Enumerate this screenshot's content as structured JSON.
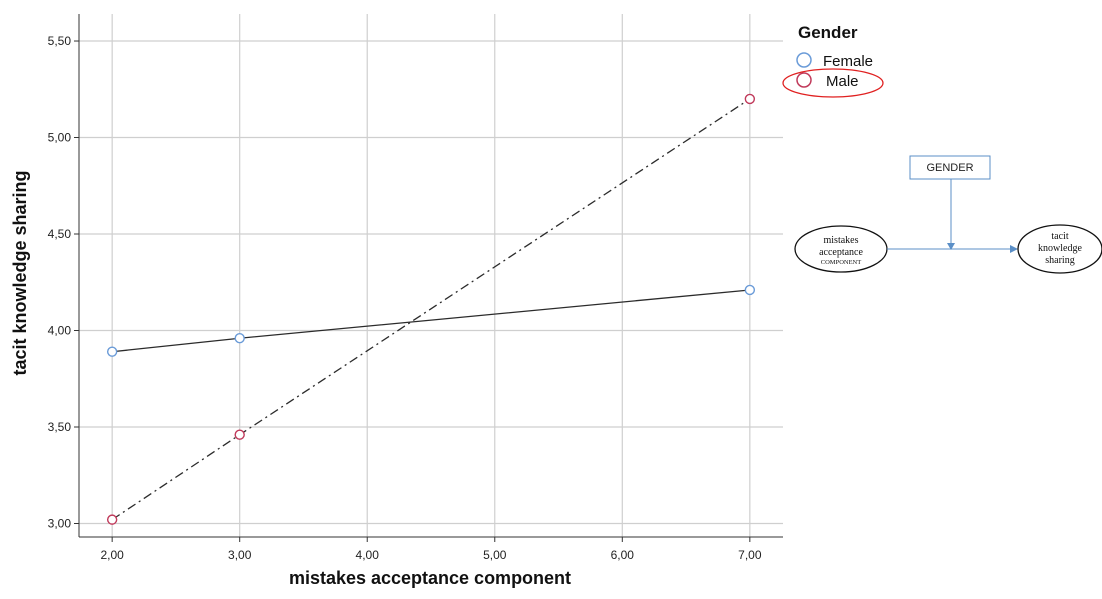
{
  "chart_data": {
    "type": "line",
    "x_tick_labels": [
      "2,00",
      "3,00",
      "4,00",
      "5,00",
      "6,00",
      "7,00"
    ],
    "x_ticks": [
      2,
      3,
      4,
      5,
      6,
      7
    ],
    "y_tick_labels": [
      "3,00",
      "3,50",
      "4,00",
      "4,50",
      "5,00",
      "5,50"
    ],
    "y_ticks": [
      3.0,
      3.5,
      4.0,
      4.5,
      5.0,
      5.5
    ],
    "xlim": [
      1.74,
      7.26
    ],
    "ylim": [
      2.93,
      5.64
    ],
    "xlabel": "mistakes acceptance component",
    "ylabel": "tacit knowledge sharing",
    "grid": true,
    "legend_title": "Gender",
    "legend_position": "top-right",
    "series": [
      {
        "name": "Female",
        "color": "#6a9bd8",
        "line_style": "solid",
        "x": [
          2,
          3,
          7
        ],
        "y": [
          3.89,
          3.96,
          4.21
        ]
      },
      {
        "name": "Male",
        "color": "#c0395a",
        "line_style": "dash-dot",
        "x": [
          2,
          3,
          7
        ],
        "y": [
          3.02,
          3.46,
          5.2
        ]
      }
    ],
    "legend_highlight_color": "#e02020"
  },
  "diagram": {
    "moderator_label": "GENDER",
    "predictor_lines": [
      "mistakes",
      "acceptance"
    ],
    "predictor_small": "COMPONENT",
    "outcome_lines": [
      "tacit",
      "knowledge",
      "sharing"
    ],
    "line_color": "#5b8fc7"
  }
}
